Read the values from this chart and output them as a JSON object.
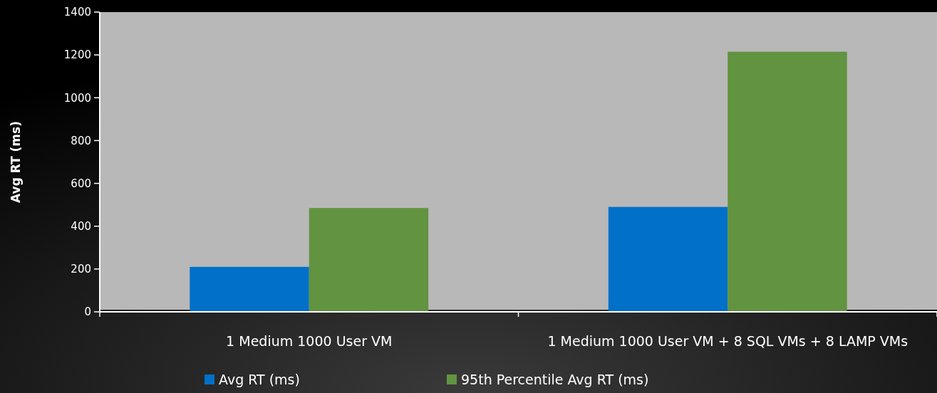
{
  "chart_data": {
    "type": "bar",
    "ylabel": "Avg RT (ms)",
    "categories": [
      "1 Medium 1000 User VM",
      "1 Medium 1000 User VM + 8 SQL VMs + 8 LAMP VMs"
    ],
    "series": [
      {
        "name": "Avg RT (ms)",
        "color": "#0070c8",
        "values": [
          210,
          490
        ]
      },
      {
        "name": "95th Percentile Avg RT (ms)",
        "color": "#629340",
        "values": [
          485,
          1215
        ]
      }
    ],
    "ylim": [
      0,
      1400
    ],
    "yticks": [
      0,
      200,
      400,
      600,
      800,
      1000,
      1200,
      1400
    ],
    "grid": false,
    "legend": "bottom"
  }
}
